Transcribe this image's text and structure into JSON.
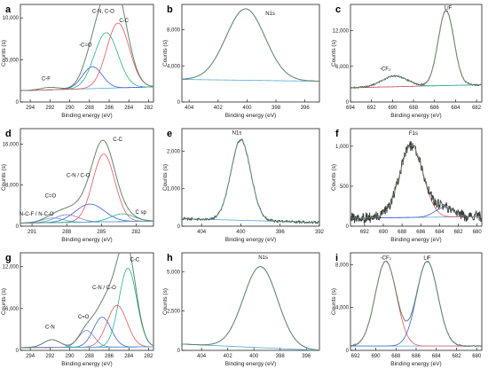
{
  "figure": {
    "x_unit_label": "Binding energy (eV)",
    "y_unit_label": "Counts (s)"
  },
  "chart_data": [
    {
      "type": "line",
      "panel_letter": "a",
      "title": "",
      "subtitle": "",
      "xlabel": "Binding energy (eV)",
      "ylabel": "Counts (s)",
      "xlim": [
        295,
        281.5
      ],
      "ylim": [
        0,
        11600
      ],
      "xticks": [
        294,
        292,
        290,
        288,
        286,
        284,
        282
      ],
      "yticks": [
        0,
        5000,
        10000
      ],
      "ytick_labels": [
        "0",
        "5,000",
        "10,000"
      ],
      "background": {
        "start": 1350,
        "end": 1800
      },
      "series": [
        {
          "kind": "data",
          "peaks": [
            [
              292,
              300,
              0.9
            ],
            [
              287.7,
              2600,
              1.0
            ],
            [
              286.3,
              6600,
              1.2
            ],
            [
              285.1,
              7700,
              1.15
            ]
          ]
        },
        {
          "kind": "component",
          "color": "#3b5fd4",
          "peaks": [
            [
              287.7,
              2600,
              1.0
            ]
          ]
        },
        {
          "kind": "component",
          "color": "#27b38a",
          "peaks": [
            [
              286.3,
              6600,
              1.2
            ]
          ]
        },
        {
          "kind": "component",
          "color": "#e2585c",
          "peaks": [
            [
              285.1,
              7700,
              1.15
            ]
          ]
        }
      ],
      "annotations": [
        {
          "text": "C-F",
          "x": 292.4,
          "y": 2600
        },
        {
          "text": "-C=O",
          "x": 288.4,
          "y": 6600
        },
        {
          "text": "C-N, C-O",
          "x": 286.6,
          "y": 10600
        },
        {
          "text": "C-C",
          "x": 284.5,
          "y": 9500
        }
      ]
    },
    {
      "type": "line",
      "panel_letter": "b",
      "title": "",
      "subtitle": "",
      "xlabel": "Binding energy (eV)",
      "ylabel": "Counts (s)",
      "xlim": [
        404.5,
        395
      ],
      "ylim": [
        0,
        10800
      ],
      "xticks": [
        404,
        402,
        400,
        398,
        396
      ],
      "yticks": [
        0,
        4000,
        8000
      ],
      "ytick_labels": [
        "0",
        "4,000",
        "8,000"
      ],
      "background": {
        "start": 2500,
        "end": 2300
      },
      "series": [
        {
          "kind": "data",
          "peaks": [
            [
              400.1,
              7900,
              1.35
            ]
          ]
        },
        {
          "kind": "component",
          "color": "#27b38a",
          "peaks": [
            [
              400.1,
              7900,
              1.35
            ]
          ]
        }
      ],
      "annotations": [
        {
          "text": "N1s",
          "x": 398.4,
          "y": 9600
        }
      ]
    },
    {
      "type": "line",
      "panel_letter": "c",
      "title": "",
      "subtitle": "",
      "xlabel": "Binding energy (eV)",
      "ylabel": "Counts (s)",
      "xlim": [
        694,
        681.5
      ],
      "ylim": [
        0,
        16400
      ],
      "xticks": [
        694,
        692,
        690,
        688,
        686,
        684,
        682
      ],
      "yticks": [
        0,
        6000,
        12000
      ],
      "ytick_labels": [
        "0",
        "6,000",
        "12,000"
      ],
      "background": {
        "start": 2400,
        "end": 2900
      },
      "series": [
        {
          "kind": "data",
          "noise": 110,
          "peaks": [
            [
              689.8,
              1800,
              1.2
            ],
            [
              684.9,
              12600,
              0.75
            ]
          ]
        },
        {
          "kind": "component",
          "color": "#27b38a",
          "peaks": [
            [
              689.8,
              1800,
              1.2
            ]
          ]
        },
        {
          "kind": "component",
          "color": "#e2585c",
          "peaks": [
            [
              684.9,
              12600,
              0.75
            ]
          ]
        }
      ],
      "annotations": [
        {
          "text": "LiF",
          "x": 684.7,
          "y": 15600
        },
        {
          "text": "-CF₂",
          "x": 690.7,
          "y": 5300
        }
      ]
    },
    {
      "type": "line",
      "panel_letter": "d",
      "title": "",
      "subtitle": "",
      "xlabel": "Binding energy (eV)",
      "ylabel": "Counts (s)",
      "xlim": [
        292,
        280.5
      ],
      "ylim": [
        0,
        19000
      ],
      "xticks": [
        291,
        288,
        285,
        282
      ],
      "yticks": [
        0,
        8000,
        16000
      ],
      "ytick_labels": [
        "0",
        "8,000",
        "16,000"
      ],
      "background": {
        "start": 600,
        "end": 1000
      },
      "series": [
        {
          "kind": "data",
          "peaks": [
            [
              289.2,
              900,
              0.9
            ],
            [
              288.0,
              1500,
              1.0
            ],
            [
              286.0,
              3500,
              1.25
            ],
            [
              284.8,
              13200,
              0.95
            ],
            [
              283.2,
              1500,
              1.0
            ]
          ]
        },
        {
          "kind": "component",
          "color": "#3b5fd4",
          "peaks": [
            [
              286.0,
              3500,
              1.25
            ]
          ]
        },
        {
          "kind": "component",
          "color": "#e2585c",
          "peaks": [
            [
              284.8,
              13200,
              0.95
            ]
          ]
        },
        {
          "kind": "component",
          "color": "#27b38a",
          "peaks": [
            [
              283.2,
              1500,
              1.0
            ]
          ]
        },
        {
          "kind": "component",
          "color": "#8e7bc8",
          "peaks": [
            [
              288.0,
              1500,
              1.0
            ]
          ]
        },
        {
          "kind": "component",
          "color": "#57a9d8",
          "peaks": [
            [
              289.2,
              900,
              0.9
            ]
          ]
        }
      ],
      "annotations": [
        {
          "text": "C-C",
          "x": 283.6,
          "y": 16600
        },
        {
          "text": "C-N / C-O",
          "x": 287.0,
          "y": 9600
        },
        {
          "text": "C=O",
          "x": 289.4,
          "y": 5600
        },
        {
          "text": "N-C-F / N-C-O",
          "x": 290.6,
          "y": 2100
        },
        {
          "text": "C sp",
          "x": 281.6,
          "y": 2400
        }
      ]
    },
    {
      "type": "line",
      "panel_letter": "e",
      "title": "",
      "subtitle": "",
      "xlabel": "Binding energy (eV)",
      "ylabel": "Counts (s)",
      "xlim": [
        406,
        392
      ],
      "ylim": [
        0,
        2600
      ],
      "xticks": [
        404,
        400,
        396,
        392
      ],
      "yticks": [
        0,
        1000,
        2000
      ],
      "ytick_labels": [
        "0",
        "1,000",
        "2,000"
      ],
      "background": {
        "start": 200,
        "end": 100
      },
      "series": [
        {
          "kind": "data",
          "noise": 30,
          "peaks": [
            [
              400.0,
              2150,
              1.0
            ]
          ]
        },
        {
          "kind": "component",
          "color": "#27b38a",
          "peaks": [
            [
              400.0,
              2150,
              1.0
            ]
          ]
        }
      ],
      "annotations": [
        {
          "text": "N1s",
          "x": 400.4,
          "y": 2450
        }
      ]
    },
    {
      "type": "line",
      "panel_letter": "f",
      "title": "",
      "subtitle": "",
      "xlabel": "Binding energy (eV)",
      "ylabel": "Counts (s)",
      "xlim": [
        693.5,
        679.5
      ],
      "ylim": [
        0,
        1220
      ],
      "xticks": [
        692,
        690,
        688,
        686,
        684,
        682,
        680
      ],
      "yticks": [
        0,
        500,
        1000
      ],
      "ytick_labels": [
        "0",
        "500",
        "1,000"
      ],
      "background": {
        "start": 100,
        "end": 120
      },
      "series": [
        {
          "kind": "data",
          "noise": 70,
          "peaks": [
            [
              687.0,
              900,
              1.25
            ],
            [
              683.5,
              120,
              1.0
            ]
          ]
        },
        {
          "kind": "component",
          "color": "#e2585c",
          "peaks": [
            [
              687.0,
              900,
              1.25
            ]
          ]
        },
        {
          "kind": "component",
          "color": "#3b5fd4",
          "peaks": [
            [
              683.5,
              120,
              1.0
            ]
          ]
        }
      ],
      "annotations": [
        {
          "text": "F1s",
          "x": 686.8,
          "y": 1140
        }
      ]
    },
    {
      "type": "line",
      "panel_letter": "g",
      "title": "",
      "subtitle": "",
      "xlabel": "Binding energy (eV)",
      "ylabel": "Counts (s)",
      "xlim": [
        295,
        281.5
      ],
      "ylim": [
        0,
        14000
      ],
      "xticks": [
        294,
        292,
        290,
        288,
        286,
        284,
        282
      ],
      "yticks": [
        0,
        6000,
        12000
      ],
      "ytick_labels": [
        "0",
        "6,000",
        "12,000"
      ],
      "background": {
        "start": 400,
        "end": 500
      },
      "series": [
        {
          "kind": "data",
          "peaks": [
            [
              291.8,
              1100,
              0.85
            ],
            [
              288.3,
              2400,
              0.8
            ],
            [
              286.7,
              4300,
              0.9
            ],
            [
              285.2,
              6000,
              1.0
            ],
            [
              284.1,
              11300,
              0.9
            ]
          ]
        },
        {
          "kind": "component",
          "color": "#3b5fd4",
          "peaks": [
            [
              286.7,
              4300,
              0.9
            ]
          ]
        },
        {
          "kind": "component",
          "color": "#e2585c",
          "peaks": [
            [
              285.2,
              6000,
              1.0
            ]
          ]
        },
        {
          "kind": "component",
          "color": "#27b38a",
          "peaks": [
            [
              284.1,
              11300,
              0.9
            ]
          ]
        },
        {
          "kind": "component",
          "color": "#8e7bc8",
          "peaks": [
            [
              288.3,
              2400,
              0.8
            ]
          ]
        },
        {
          "kind": "component",
          "color": "#57a9d8",
          "peaks": [
            [
              291.8,
              1100,
              0.85
            ]
          ]
        }
      ],
      "annotations": [
        {
          "text": "C-C",
          "x": 283.4,
          "y": 12800
        },
        {
          "text": "C-N / C-O",
          "x": 286.5,
          "y": 8800
        },
        {
          "text": "C=O",
          "x": 288.6,
          "y": 4600
        },
        {
          "text": "C-N",
          "x": 292.0,
          "y": 3100
        }
      ]
    },
    {
      "type": "line",
      "panel_letter": "h",
      "title": "",
      "subtitle": "",
      "xlabel": "Binding energy (eV)",
      "ylabel": "Counts (s)",
      "xlim": [
        405.5,
        395
      ],
      "ylim": [
        0,
        6200
      ],
      "xticks": [
        404,
        402,
        400,
        398,
        396
      ],
      "yticks": [
        0,
        2500,
        5000
      ],
      "ytick_labels": [
        "0",
        "2,500",
        "5,000"
      ],
      "background": {
        "start": 400,
        "end": 0
      },
      "series": [
        {
          "kind": "data",
          "peaks": [
            [
              399.5,
              5150,
              1.3
            ]
          ]
        },
        {
          "kind": "component",
          "color": "#27b38a",
          "peaks": [
            [
              399.5,
              5150,
              1.3
            ]
          ]
        }
      ],
      "annotations": [
        {
          "text": "N1s",
          "x": 399.3,
          "y": 5800
        }
      ]
    },
    {
      "type": "line",
      "panel_letter": "i",
      "title": "",
      "subtitle": "",
      "xlabel": "Binding energy (eV)",
      "ylabel": "Counts (s)",
      "xlim": [
        692.5,
        679.5
      ],
      "ylim": [
        0,
        9100
      ],
      "xticks": [
        692,
        690,
        688,
        686,
        684,
        682,
        680
      ],
      "yticks": [
        0,
        4000,
        8000
      ],
      "ytick_labels": [
        "0",
        "4,000",
        "8,000"
      ],
      "background": {
        "start": 400,
        "end": 400
      },
      "series": [
        {
          "kind": "data",
          "noise": 45,
          "peaks": [
            [
              689.0,
              7900,
              1.05
            ],
            [
              684.9,
              7900,
              1.05
            ]
          ]
        },
        {
          "kind": "component",
          "color": "#e2585c",
          "peaks": [
            [
              689.0,
              7900,
              1.05
            ]
          ]
        },
        {
          "kind": "component",
          "color": "#3b5fd4",
          "peaks": [
            [
              684.9,
              7900,
              1.05
            ]
          ]
        }
      ],
      "annotations": [
        {
          "text": "-CF₂",
          "x": 689.0,
          "y": 8500
        },
        {
          "text": "LiF",
          "x": 684.9,
          "y": 8500
        }
      ]
    }
  ]
}
